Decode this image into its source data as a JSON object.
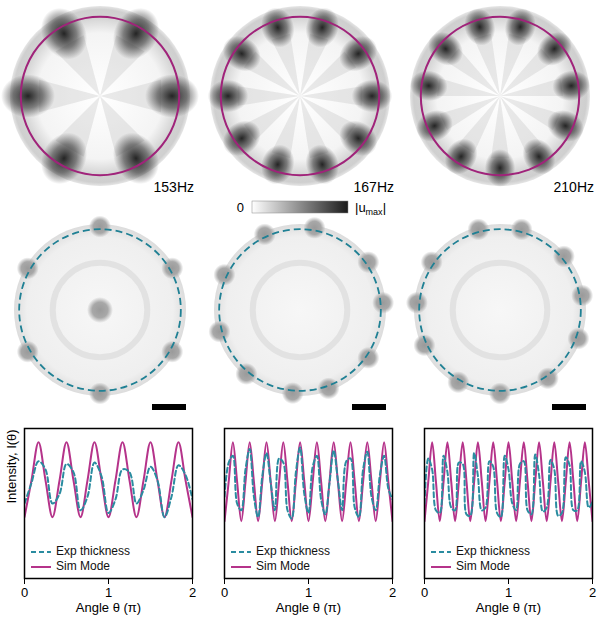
{
  "chart_data": [
    {
      "type": "line",
      "xlabel": "Angle θ (π)",
      "ylabel": "Intensity, I(θ)",
      "xlim": [
        0,
        2
      ],
      "xticks": [
        0,
        1,
        2
      ],
      "ylim": [
        0,
        1.1
      ],
      "yticks": [],
      "tick_labels": "x",
      "grid": false,
      "legend": "lower left",
      "x": [
        0,
        0.083,
        0.167,
        0.25,
        0.333,
        0.417,
        0.5,
        0.583,
        0.667,
        0.75,
        0.833,
        0.917,
        1,
        1.083,
        1.167,
        1.25,
        1.333,
        1.417,
        1.5,
        1.583,
        1.667,
        1.75,
        1.833,
        1.917,
        2
      ],
      "series": [
        {
          "name": "Exp thickness",
          "color": "#2a8ca0",
          "line_style": "dashed",
          "values": [
            0.55,
            0.7,
            0.86,
            0.8,
            0.55,
            0.62,
            0.84,
            0.78,
            0.5,
            0.6,
            0.85,
            0.75,
            0.48,
            0.58,
            0.8,
            0.78,
            0.55,
            0.65,
            0.82,
            0.72,
            0.45,
            0.6,
            0.83,
            0.76,
            0.58
          ]
        },
        {
          "name": "Sim Mode",
          "color": "#b5338a",
          "line_style": "solid",
          "values": [
            0.45,
            0.72,
            1,
            0.72,
            0.45,
            0.72,
            1,
            0.72,
            0.45,
            0.72,
            1,
            0.72,
            0.45,
            0.72,
            1,
            0.72,
            0.45,
            0.72,
            1,
            0.72,
            0.45,
            0.72,
            1,
            0.72,
            0.45
          ]
        }
      ]
    },
    {
      "type": "line",
      "xlabel": "Angle θ (π)",
      "xlim": [
        0,
        2
      ],
      "xticks": [
        0,
        1,
        2
      ],
      "ylim": [
        0,
        1.1
      ],
      "yticks": [],
      "tick_labels": "x",
      "grid": false,
      "legend": "lower left",
      "x": [
        0,
        0.05,
        0.1,
        0.15,
        0.2,
        0.25,
        0.3,
        0.35,
        0.4,
        0.45,
        0.5,
        0.55,
        0.6,
        0.65,
        0.7,
        0.75,
        0.8,
        0.85,
        0.9,
        0.95,
        1,
        1.05,
        1.1,
        1.15,
        1.2,
        1.25,
        1.3,
        1.35,
        1.4,
        1.45,
        1.5,
        1.55,
        1.6,
        1.65,
        1.7,
        1.75,
        1.8,
        1.85,
        1.9,
        1.95,
        2
      ],
      "series": [
        {
          "name": "Exp thickness",
          "color": "#2a8ca0",
          "line_style": "dashed",
          "values": [
            0.6,
            0.85,
            0.9,
            0.55,
            0.5,
            0.8,
            0.95,
            0.6,
            0.45,
            0.75,
            0.92,
            0.7,
            0.5,
            0.88,
            0.85,
            0.5,
            0.44,
            0.78,
            0.96,
            0.62,
            0.48,
            0.82,
            0.9,
            0.58,
            0.47,
            0.7,
            0.94,
            0.72,
            0.5,
            0.86,
            0.88,
            0.52,
            0.45,
            0.8,
            0.93,
            0.6,
            0.5,
            0.76,
            0.9,
            0.66,
            0.58
          ]
        },
        {
          "name": "Sim Mode",
          "color": "#b5338a",
          "line_style": "solid",
          "values": [
            0.42,
            0.71,
            1,
            0.71,
            0.42,
            0.71,
            1,
            0.71,
            0.42,
            0.71,
            1,
            0.71,
            0.42,
            0.71,
            1,
            0.71,
            0.42,
            0.71,
            1,
            0.71,
            0.42,
            0.71,
            1,
            0.71,
            0.42,
            0.71,
            1,
            0.71,
            0.42,
            0.71,
            1,
            0.71,
            0.42,
            0.71,
            1,
            0.71,
            0.42,
            0.71,
            1,
            0.71,
            0.42
          ]
        }
      ]
    },
    {
      "type": "line",
      "xlabel": "Angle θ (π)",
      "xlim": [
        0,
        2
      ],
      "xticks": [
        0,
        1,
        2
      ],
      "ylim": [
        0,
        1.1
      ],
      "yticks": [],
      "tick_labels": "x",
      "grid": false,
      "legend": "lower left",
      "x": [
        0,
        0.045,
        0.091,
        0.136,
        0.182,
        0.227,
        0.273,
        0.318,
        0.364,
        0.409,
        0.455,
        0.5,
        0.545,
        0.591,
        0.636,
        0.682,
        0.727,
        0.773,
        0.818,
        0.864,
        0.909,
        0.955,
        1,
        1.045,
        1.091,
        1.136,
        1.182,
        1.227,
        1.273,
        1.318,
        1.364,
        1.409,
        1.455,
        1.5,
        1.545,
        1.591,
        1.636,
        1.682,
        1.727,
        1.773,
        1.818,
        1.864,
        1.909,
        1.955,
        2
      ],
      "series": [
        {
          "name": "Exp thickness",
          "color": "#2a8ca0",
          "line_style": "dashed",
          "values": [
            0.55,
            0.88,
            0.8,
            0.5,
            0.48,
            0.9,
            0.78,
            0.52,
            0.5,
            0.85,
            0.84,
            0.47,
            0.46,
            0.92,
            0.75,
            0.5,
            0.52,
            0.86,
            0.82,
            0.48,
            0.45,
            0.9,
            0.8,
            0.55,
            0.5,
            0.84,
            0.86,
            0.5,
            0.47,
            0.91,
            0.76,
            0.49,
            0.52,
            0.87,
            0.8,
            0.46,
            0.48,
            0.89,
            0.83,
            0.5,
            0.5,
            0.86,
            0.78,
            0.52,
            0.56
          ]
        },
        {
          "name": "Sim Mode",
          "color": "#b5338a",
          "line_style": "solid",
          "values": [
            0.42,
            0.71,
            1,
            0.71,
            0.42,
            0.71,
            1,
            0.71,
            0.42,
            0.71,
            1,
            0.71,
            0.42,
            0.71,
            1,
            0.71,
            0.42,
            0.71,
            1,
            0.71,
            0.42,
            0.71,
            1,
            0.71,
            0.42,
            0.71,
            1,
            0.71,
            0.42,
            0.71,
            1,
            0.71,
            0.42,
            0.71,
            1,
            0.71,
            0.42,
            0.71,
            1,
            0.71,
            0.42,
            0.71,
            1,
            0.71,
            0.42
          ]
        }
      ]
    }
  ],
  "mode_images": [
    {
      "label": "153Hz",
      "lobe_count": 6
    },
    {
      "label": "167Hz",
      "lobe_count": 10
    },
    {
      "label": "210Hz",
      "lobe_count": 11
    }
  ],
  "colorbar": {
    "min_label": "0",
    "max_label": {
      "text": "|u",
      "sub": "max",
      "after": "|"
    }
  },
  "experiment_images": [
    {
      "spot_angles_deg": [
        90,
        30,
        150,
        210,
        270,
        330
      ],
      "center_spot": true
    },
    {
      "spot_angles_deg": [
        80,
        115,
        35,
        5,
        325,
        290,
        265,
        230,
        195,
        155
      ],
      "center_spot": false
    },
    {
      "spot_angles_deg": [
        75,
        105,
        40,
        10,
        340,
        305,
        270,
        240,
        205,
        175,
        145
      ],
      "center_spot": false
    }
  ]
}
